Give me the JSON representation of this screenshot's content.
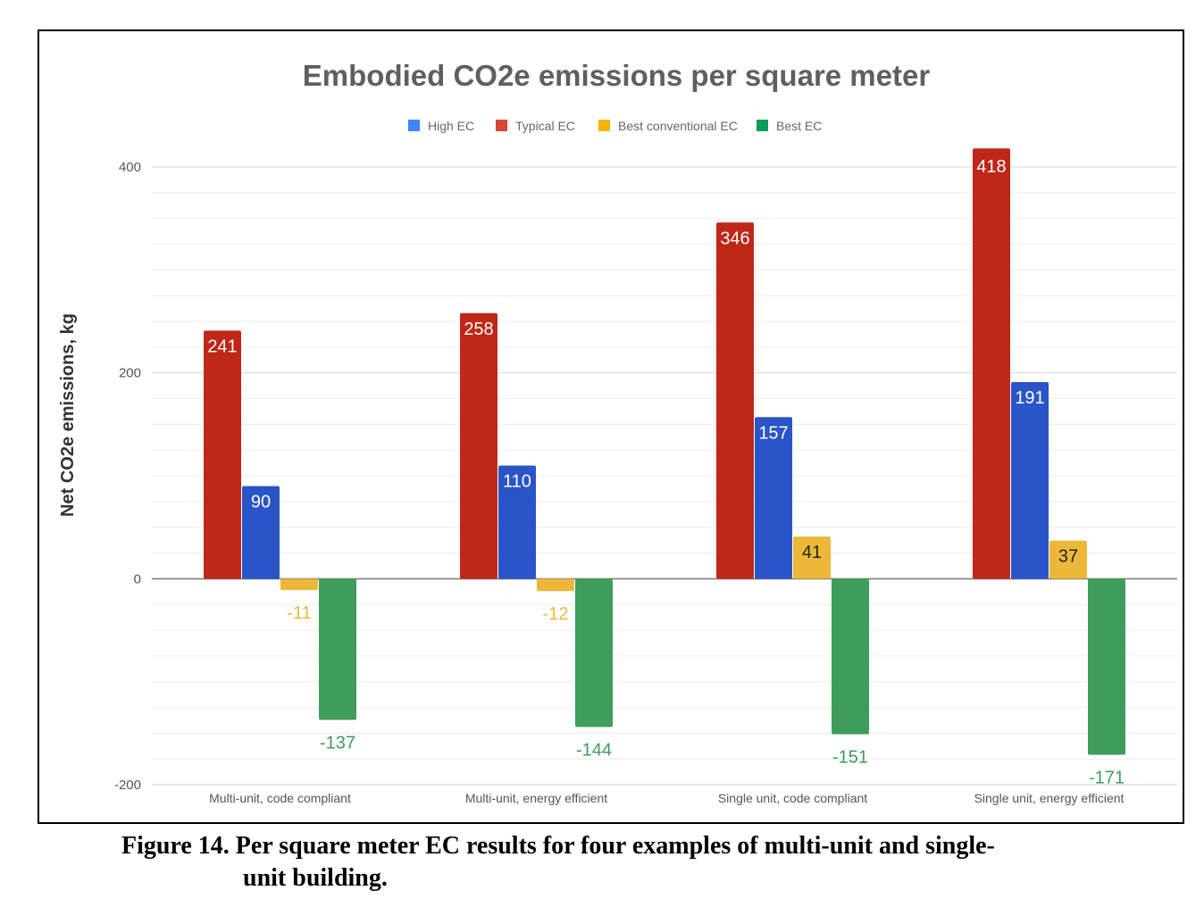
{
  "chart_data": {
    "type": "bar",
    "title": "Embodied CO2e emissions per square meter",
    "xlabel": "",
    "ylabel": "Net CO2e emissions, kg",
    "categories": [
      "Multi-unit, code compliant",
      "Multi-unit, energy efficient",
      "Single unit, code compliant",
      "Single unit, energy efficient"
    ],
    "series_order_legend": [
      "High EC",
      "Typical EC",
      "Best conventional EC",
      "Best EC"
    ],
    "series": [
      {
        "name": "Typical EC",
        "color": "#bf2718",
        "values": [
          241,
          258,
          346,
          418
        ]
      },
      {
        "name": "High EC",
        "color": "#2a55c8",
        "values": [
          90,
          110,
          157,
          191
        ]
      },
      {
        "name": "Best conventional EC",
        "color": "#edb83a",
        "values": [
          -11,
          -12,
          41,
          37
        ]
      },
      {
        "name": "Best EC",
        "color": "#3e9d5b",
        "values": [
          -137,
          -144,
          -151,
          -171
        ]
      }
    ],
    "legend_colors": {
      "High EC": "#4285f4",
      "Typical EC": "#db4437",
      "Best conventional EC": "#f4b400",
      "Best EC": "#0f9d58"
    },
    "ylim": [
      -200,
      400
    ],
    "yticks": [
      "400",
      "200",
      "0",
      "-200"
    ],
    "grid": true,
    "legend_position": "top-center"
  },
  "caption": {
    "line1": "Figure 14. Per square meter EC results for four examples of multi-unit and single-",
    "line2": "unit building."
  }
}
